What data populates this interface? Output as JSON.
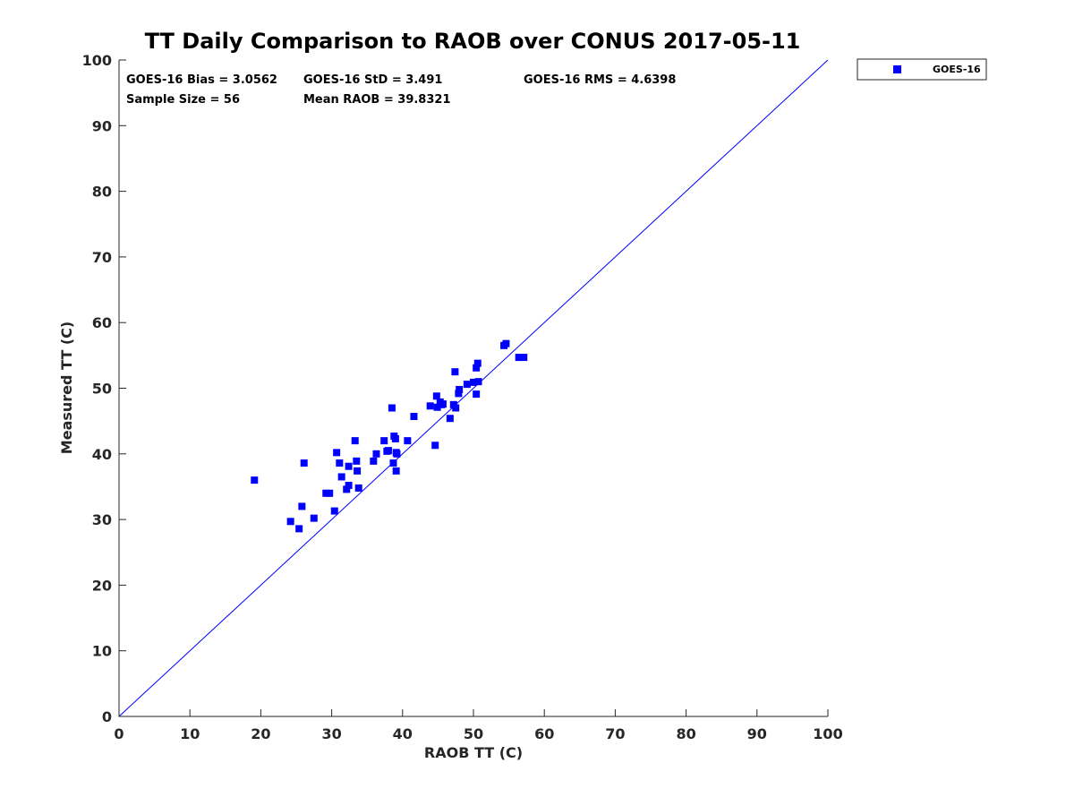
{
  "chart_data": {
    "type": "scatter",
    "title": "TT Daily Comparison to RAOB over CONUS 2017-05-11",
    "xlabel": "RAOB TT (C)",
    "ylabel": "Measured TT (C)",
    "xlim": [
      0,
      100
    ],
    "ylim": [
      0,
      100
    ],
    "xticks": [
      "0",
      "10",
      "20",
      "30",
      "40",
      "50",
      "60",
      "70",
      "80",
      "90",
      "100"
    ],
    "yticks": [
      "0",
      "10",
      "20",
      "30",
      "40",
      "50",
      "60",
      "70",
      "80",
      "90",
      "100"
    ],
    "grid": false,
    "legend_position": "outside-top-right",
    "reference_line": {
      "x": [
        0,
        100
      ],
      "y": [
        0,
        100
      ],
      "color": "#0000ff"
    },
    "stats": {
      "bias": "GOES-16 Bias = 3.0562",
      "std": "GOES-16 StD = 3.491",
      "rms": "GOES-16 RMS = 4.6398",
      "sample_size": "Sample Size = 56",
      "mean_raob": "Mean RAOB = 39.8321"
    },
    "series": [
      {
        "name": "GOES-16",
        "color": "#0000ff",
        "marker": "square",
        "points": [
          [
            19.1,
            36.0
          ],
          [
            24.2,
            29.7
          ],
          [
            25.4,
            28.6
          ],
          [
            25.8,
            32.0
          ],
          [
            26.1,
            38.6
          ],
          [
            27.5,
            30.2
          ],
          [
            29.2,
            34.0
          ],
          [
            29.7,
            34.0
          ],
          [
            30.4,
            31.3
          ],
          [
            30.7,
            40.2
          ],
          [
            31.1,
            38.6
          ],
          [
            31.4,
            36.5
          ],
          [
            32.1,
            34.6
          ],
          [
            32.4,
            35.2
          ],
          [
            32.4,
            38.1
          ],
          [
            33.3,
            42.0
          ],
          [
            33.5,
            38.9
          ],
          [
            33.6,
            37.4
          ],
          [
            33.8,
            34.8
          ],
          [
            35.9,
            38.9
          ],
          [
            36.3,
            40.0
          ],
          [
            37.4,
            42.0
          ],
          [
            38.0,
            40.5
          ],
          [
            38.5,
            47.0
          ],
          [
            38.7,
            38.6
          ],
          [
            38.8,
            42.7
          ],
          [
            39.0,
            42.3
          ],
          [
            39.1,
            40.2
          ],
          [
            39.1,
            37.4
          ],
          [
            39.2,
            40.0
          ],
          [
            40.7,
            42.0
          ],
          [
            41.6,
            45.7
          ],
          [
            43.9,
            47.3
          ],
          [
            44.6,
            41.3
          ],
          [
            44.8,
            48.8
          ],
          [
            44.9,
            47.1
          ],
          [
            45.3,
            47.9
          ],
          [
            45.7,
            47.6
          ],
          [
            46.7,
            45.4
          ],
          [
            47.2,
            47.5
          ],
          [
            47.5,
            47.0
          ],
          [
            47.4,
            52.5
          ],
          [
            47.9,
            49.2
          ],
          [
            48.0,
            49.8
          ],
          [
            49.1,
            50.6
          ],
          [
            50.0,
            50.9
          ],
          [
            50.4,
            49.1
          ],
          [
            50.4,
            53.1
          ],
          [
            50.6,
            53.8
          ],
          [
            50.7,
            51.0
          ],
          [
            54.3,
            56.5
          ],
          [
            54.6,
            56.8
          ],
          [
            56.4,
            54.7
          ],
          [
            57.1,
            54.7
          ],
          [
            45.5,
            47.5
          ],
          [
            37.8,
            40.4
          ]
        ]
      }
    ]
  }
}
